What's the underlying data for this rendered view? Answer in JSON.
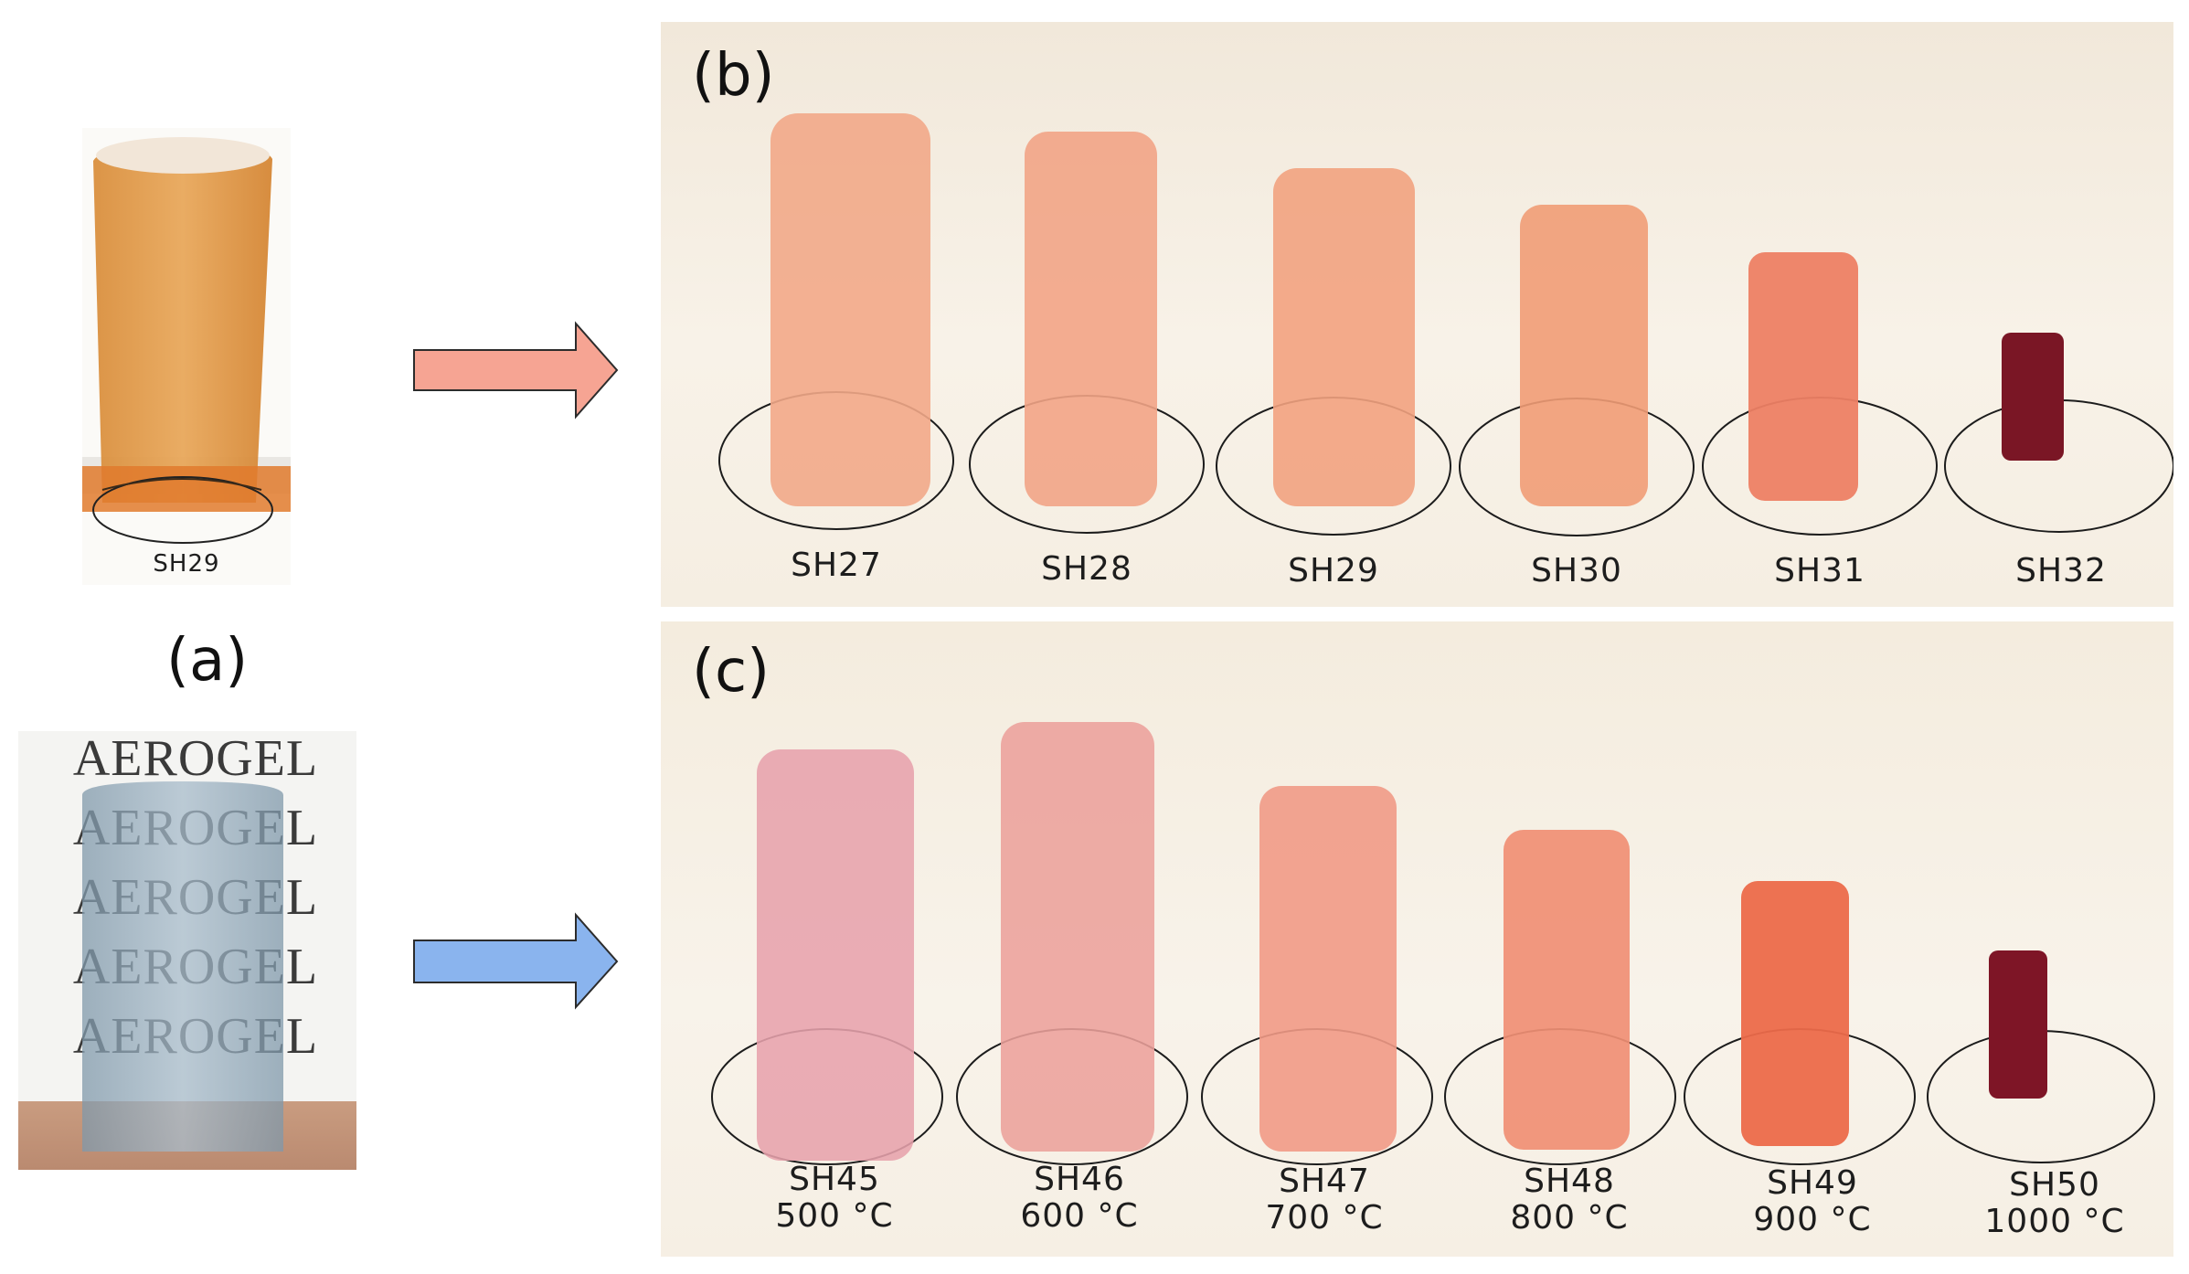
{
  "panels": {
    "a": {
      "label": "(a)",
      "inset_label": "SH29",
      "aerogel_word": "AEROGEL"
    },
    "b": {
      "label": "(b)",
      "samples": [
        "SH27",
        "SH28",
        "SH29",
        "SH30",
        "SH31",
        "SH32"
      ]
    },
    "c": {
      "label": "(c)",
      "samples": [
        {
          "name": "SH45",
          "temp": "500 °C"
        },
        {
          "name": "SH46",
          "temp": "600 °C"
        },
        {
          "name": "SH47",
          "temp": "700 °C"
        },
        {
          "name": "SH48",
          "temp": "800 °C"
        },
        {
          "name": "SH49",
          "temp": "900 °C"
        },
        {
          "name": "SH50",
          "temp": "1000 °C"
        }
      ]
    }
  },
  "colors": {
    "arrow_top": "#f6a493",
    "arrow_bottom": "#8ab4ee",
    "panel_bg": "#f6efe3"
  }
}
